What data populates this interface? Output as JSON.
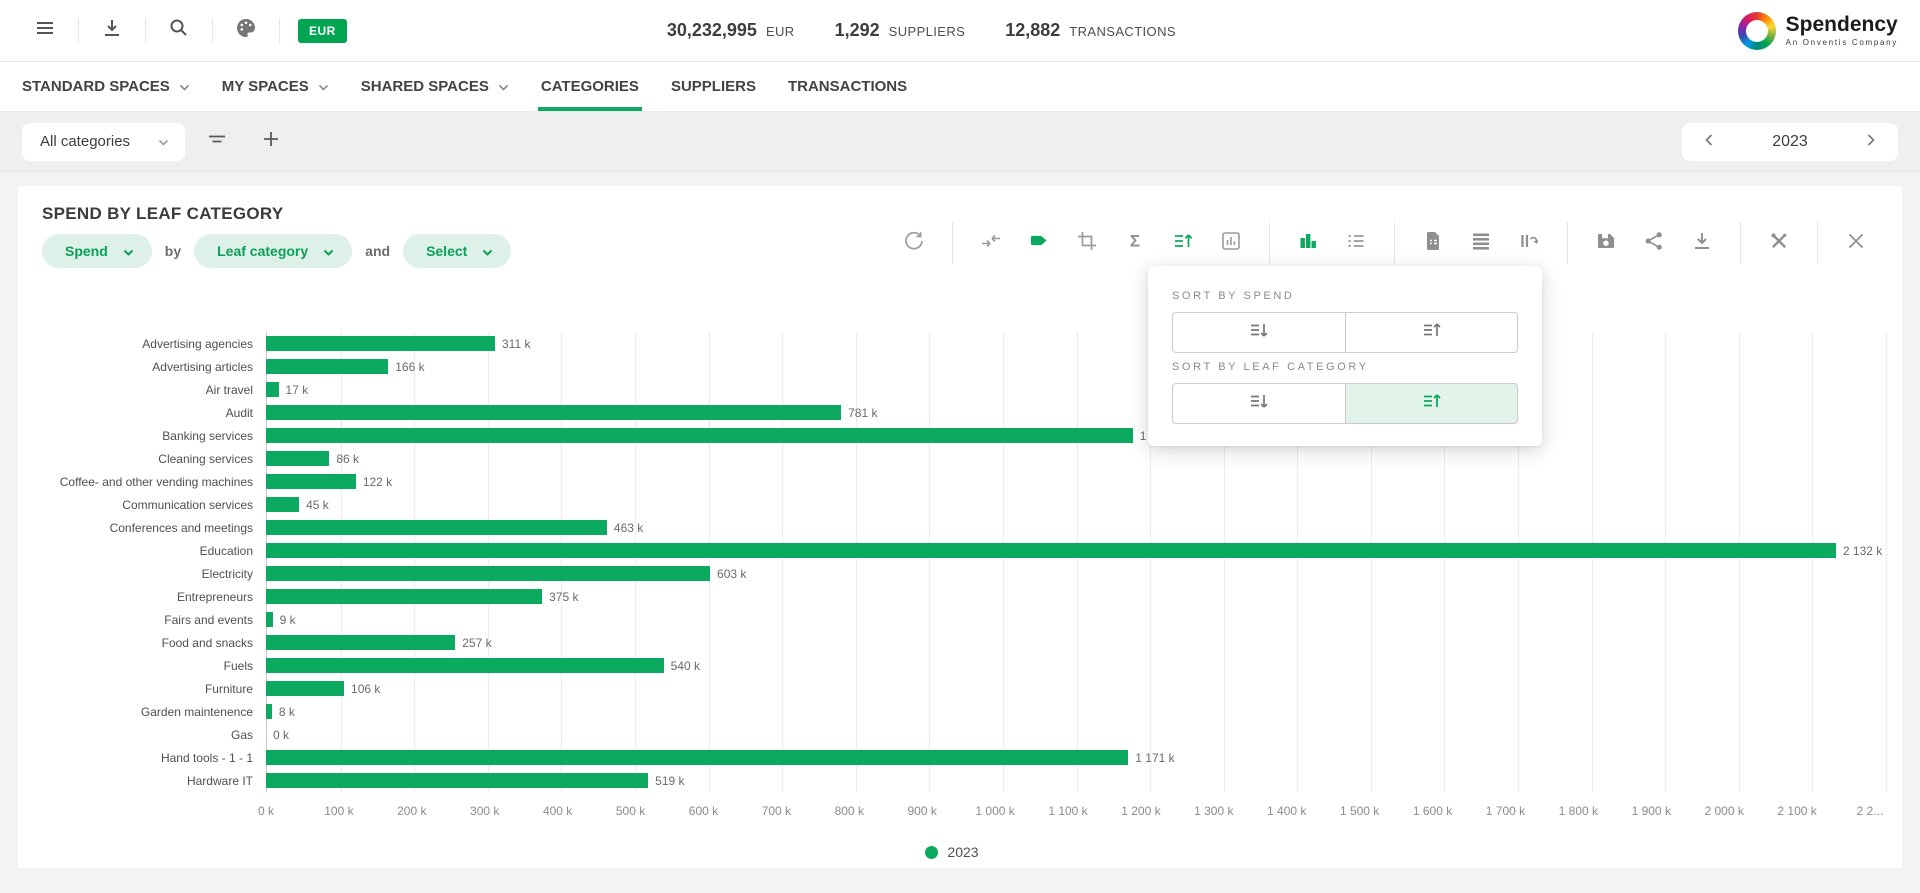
{
  "header": {
    "currency_badge": "EUR",
    "stats": [
      {
        "value": "30,232,995",
        "label": "EUR"
      },
      {
        "value": "1,292",
        "label": "SUPPLIERS"
      },
      {
        "value": "12,882",
        "label": "TRANSACTIONS"
      }
    ],
    "logo": {
      "name": "Spendency",
      "tagline": "An Onventis Company"
    },
    "icons": [
      "menu-icon",
      "download-icon",
      "search-icon",
      "palette-icon"
    ]
  },
  "nav": {
    "tabs": [
      {
        "label": "STANDARD SPACES",
        "dropdown": true,
        "active": false
      },
      {
        "label": "MY SPACES",
        "dropdown": true,
        "active": false
      },
      {
        "label": "SHARED SPACES",
        "dropdown": true,
        "active": false
      },
      {
        "label": "CATEGORIES",
        "dropdown": false,
        "active": true
      },
      {
        "label": "SUPPLIERS",
        "dropdown": false,
        "active": false
      },
      {
        "label": "TRANSACTIONS",
        "dropdown": false,
        "active": false
      }
    ]
  },
  "filter_bar": {
    "category_select": "All categories",
    "year": "2023",
    "icons": [
      "filter-icon",
      "plus-icon",
      "chevron-left-icon",
      "chevron-right-icon"
    ]
  },
  "panel": {
    "title": "SPEND BY LEAF CATEGORY",
    "measure_select": "Spend",
    "by_label": "by",
    "dimension_select": "Leaf category",
    "and_label": "and",
    "secondary_select": "Select",
    "toolbar": {
      "icons": [
        "refresh",
        "merge-arrows",
        "tag",
        "crop",
        "sigma",
        "sort",
        "columns",
        "bar-chart",
        "list",
        "report",
        "rows",
        "pivot",
        "save",
        "share",
        "download",
        "tools",
        "close"
      ],
      "active_icons": [
        "tag",
        "sort",
        "bar-chart"
      ]
    }
  },
  "sort_popup": {
    "sections": [
      {
        "label": "SORT BY SPEND"
      },
      {
        "label": "SORT BY LEAF CATEGORY"
      }
    ],
    "selected": "leaf-category-ascending"
  },
  "chart_data": {
    "type": "bar",
    "orientation": "horizontal",
    "title": "SPEND BY LEAF CATEGORY",
    "unit": "k EUR",
    "bar_color": "#0caa60",
    "grid": true,
    "categories": [
      "Advertising agencies",
      "Advertising articles",
      "Air travel",
      "Audit",
      "Banking services",
      "Cleaning services",
      "Coffee- and other vending machines",
      "Communication services",
      "Conferences and meetings",
      "Education",
      "Electricity",
      "Entrepreneurs",
      "Fairs and events",
      "Food and snacks",
      "Fuels",
      "Furniture",
      "Garden maintenence",
      "Gas",
      "Hand tools - 1 - 1",
      "Hardware IT"
    ],
    "values": [
      311,
      166,
      17,
      781,
      1177,
      86,
      122,
      45,
      463,
      2132,
      603,
      375,
      9,
      257,
      540,
      106,
      8,
      0,
      1171,
      519
    ],
    "value_labels": [
      "311 k",
      "166 k",
      "17 k",
      "781 k",
      "1 177 k",
      "86 k",
      "122 k",
      "45 k",
      "463 k",
      "2 132 k",
      "603 k",
      "375 k",
      "9 k",
      "257 k",
      "540 k",
      "106 k",
      "8 k",
      "0 k",
      "1 171 k",
      "519 k"
    ],
    "xlim": [
      0,
      2200
    ],
    "x_ticks": [
      "0 k",
      "100 k",
      "200 k",
      "300 k",
      "400 k",
      "500 k",
      "600 k",
      "700 k",
      "800 k",
      "900 k",
      "1 000 k",
      "1 100 k",
      "1 200 k",
      "1 300 k",
      "1 400 k",
      "1 500 k",
      "1 600 k",
      "1 700 k",
      "1 800 k",
      "1 900 k",
      "2 000 k",
      "2 100 k",
      "2 2..."
    ],
    "legend": [
      {
        "label": "2023",
        "color": "#0caa60"
      }
    ],
    "legend_position": "bottom-center"
  },
  "colors": {
    "accent_green": "#0aa95e",
    "badge_green": "#00a551",
    "pill_bg": "#def1e8",
    "selected_sort_bg": "#e2f3ea",
    "page_bg": "#f3f3f4"
  }
}
